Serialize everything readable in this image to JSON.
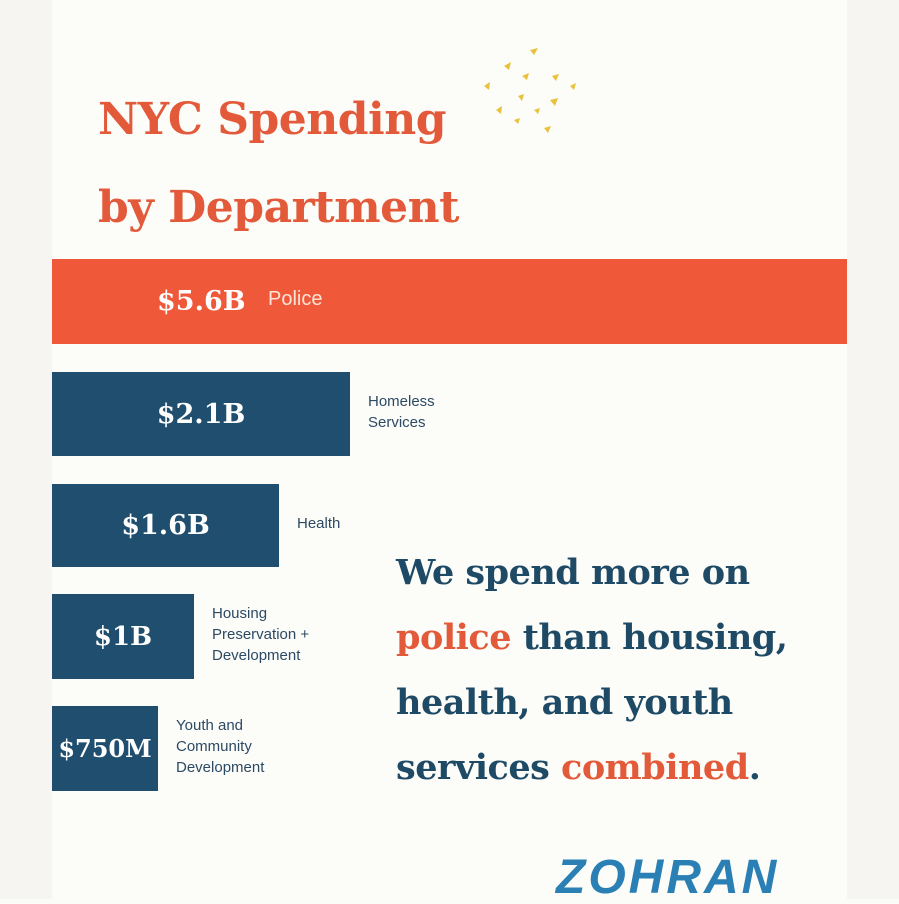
{
  "title": {
    "line1": "NYC Spending",
    "line2": "by Department"
  },
  "chart_data": {
    "type": "bar",
    "orientation": "horizontal",
    "unit": "USD",
    "categories": [
      "Police",
      "Homeless\nServices",
      "Health",
      "Housing\nPreservation +\nDevelopment",
      "Youth and\nCommunity\nDevelopment"
    ],
    "values": [
      5600000000,
      2100000000,
      1600000000,
      1000000000,
      750000000
    ],
    "value_labels": [
      "$5.6B",
      "$2.1B",
      "$1.6B",
      "$1B",
      "$750M"
    ],
    "colors": [
      "#f0583a",
      "#1f4e6e",
      "#1f4e6e",
      "#1f4e6e",
      "#1f4e6e"
    ],
    "grid": false,
    "axes_visible": false
  },
  "statement": {
    "part1": "We spend more on",
    "highlight1": "police",
    "part2": "than housing, health, and youth services",
    "highlight2": "combined",
    "part3": "."
  },
  "brand": "ZOHRAN",
  "colors": {
    "accent_orange": "#e35a3a",
    "bar_orange": "#f0583a",
    "navy": "#1f4e6e",
    "brand_blue": "#2a7fb5",
    "confetti_gold": "#e8c23a"
  }
}
